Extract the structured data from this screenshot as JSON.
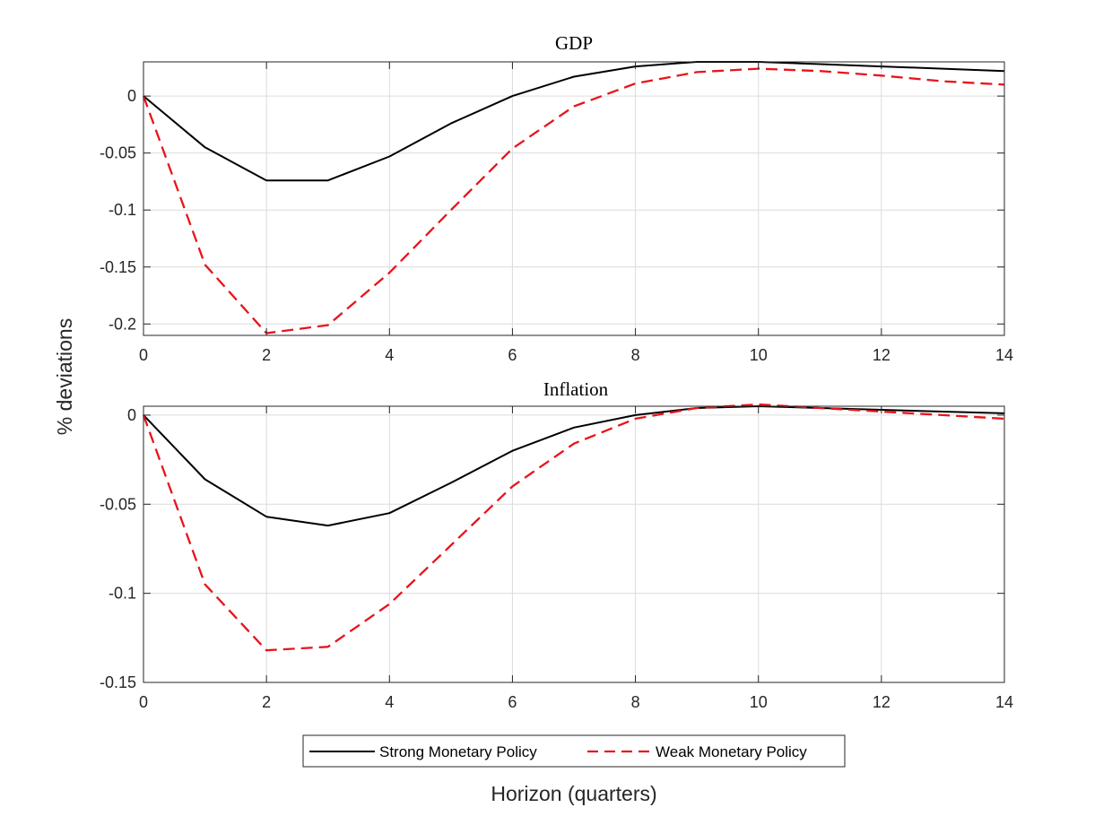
{
  "chart_data": [
    {
      "type": "line",
      "title": "GDP",
      "x": [
        0,
        1,
        2,
        3,
        4,
        5,
        6,
        7,
        8,
        9,
        10,
        11,
        12,
        13,
        14
      ],
      "xlim": [
        0,
        14
      ],
      "xticks": [
        "0",
        "2",
        "4",
        "6",
        "8",
        "10",
        "12",
        "14"
      ],
      "ylim": [
        -0.21,
        0.03
      ],
      "yticks": [
        "0",
        "-0.05",
        "-0.1",
        "-0.15",
        "-0.2"
      ],
      "grid": true,
      "series": [
        {
          "name": "Strong Monetary Policy",
          "color": "#000000",
          "style": "solid",
          "values": [
            0,
            -0.045,
            -0.074,
            -0.074,
            -0.053,
            -0.024,
            0.0,
            0.017,
            0.026,
            0.03,
            0.03,
            0.028,
            0.026,
            0.024,
            0.022
          ]
        },
        {
          "name": "Weak Monetary Policy",
          "color": "#e8141b",
          "style": "dashed",
          "values": [
            0,
            -0.148,
            -0.208,
            -0.201,
            -0.155,
            -0.1,
            -0.046,
            -0.009,
            0.011,
            0.021,
            0.024,
            0.022,
            0.018,
            0.013,
            0.01
          ]
        }
      ]
    },
    {
      "type": "line",
      "title": "Inflation",
      "x": [
        0,
        1,
        2,
        3,
        4,
        5,
        6,
        7,
        8,
        9,
        10,
        11,
        12,
        13,
        14
      ],
      "xlim": [
        0,
        14
      ],
      "xticks": [
        "0",
        "2",
        "4",
        "6",
        "8",
        "10",
        "12",
        "14"
      ],
      "ylim": [
        -0.15,
        0.005
      ],
      "yticks": [
        "0",
        "-0.05",
        "-0.1",
        "-0.15"
      ],
      "grid": true,
      "series": [
        {
          "name": "Strong Monetary Policy",
          "color": "#000000",
          "style": "solid",
          "values": [
            0,
            -0.036,
            -0.057,
            -0.062,
            -0.055,
            -0.038,
            -0.02,
            -0.007,
            0.0,
            0.004,
            0.005,
            0.004,
            0.003,
            0.002,
            0.001
          ]
        },
        {
          "name": "Weak Monetary Policy",
          "color": "#e8141b",
          "style": "dashed",
          "values": [
            0,
            -0.095,
            -0.132,
            -0.13,
            -0.106,
            -0.073,
            -0.04,
            -0.016,
            -0.002,
            0.004,
            0.006,
            0.004,
            0.002,
            0.0,
            -0.002
          ]
        }
      ]
    }
  ],
  "labels": {
    "ylabel": "% deviations",
    "xlabel": "Horizon (quarters)"
  },
  "legend": {
    "placement": "bottom-center",
    "entries": [
      "Strong Monetary Policy",
      "Weak Monetary Policy"
    ]
  }
}
